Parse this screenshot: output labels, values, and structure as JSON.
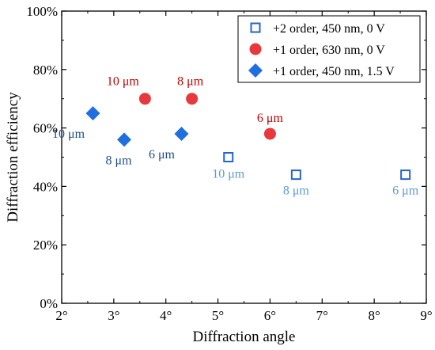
{
  "chart_data": {
    "type": "scatter",
    "title": "",
    "xlabel": "Diffraction angle",
    "ylabel": "Diffraction efficiency",
    "xlim": [
      2,
      9
    ],
    "ylim": [
      0,
      100
    ],
    "x_ticks": [
      2,
      3,
      4,
      5,
      6,
      7,
      8,
      9
    ],
    "x_tick_labels": [
      "2°",
      "3°",
      "4°",
      "5°",
      "6°",
      "7°",
      "8°",
      "9°"
    ],
    "y_ticks": [
      0,
      20,
      40,
      60,
      80,
      100
    ],
    "y_tick_labels": [
      "0%",
      "20%",
      "40%",
      "60%",
      "80%",
      "100%"
    ],
    "grid": false,
    "legend_position": "top-right",
    "series": [
      {
        "name": "+2 order, 450 nm, 0 V",
        "marker": "open-square",
        "color": "#2266cc",
        "label_color": "#5b9bd5",
        "points": [
          {
            "x": 5.2,
            "y": 50,
            "label": "10 μm"
          },
          {
            "x": 6.5,
            "y": 44,
            "label": "8 μm"
          },
          {
            "x": 8.6,
            "y": 44,
            "label": "6 μm"
          }
        ]
      },
      {
        "name": "+1 order, 630 nm, 0 V",
        "marker": "circle",
        "color": "#e8383d",
        "label_color": "#c00000",
        "points": [
          {
            "x": 3.6,
            "y": 70,
            "label": "10 μm"
          },
          {
            "x": 4.5,
            "y": 70,
            "label": "8 μm"
          },
          {
            "x": 6.0,
            "y": 58,
            "label": "6 μm"
          }
        ]
      },
      {
        "name": "+1 order, 450 nm, 1.5 V",
        "marker": "diamond",
        "color": "#1f6fe0",
        "label_color": "#1f4e8c",
        "points": [
          {
            "x": 2.6,
            "y": 65,
            "label": "10 μm"
          },
          {
            "x": 3.2,
            "y": 56,
            "label": "8 μm"
          },
          {
            "x": 4.3,
            "y": 58,
            "label": "6 μm"
          }
        ]
      }
    ]
  }
}
